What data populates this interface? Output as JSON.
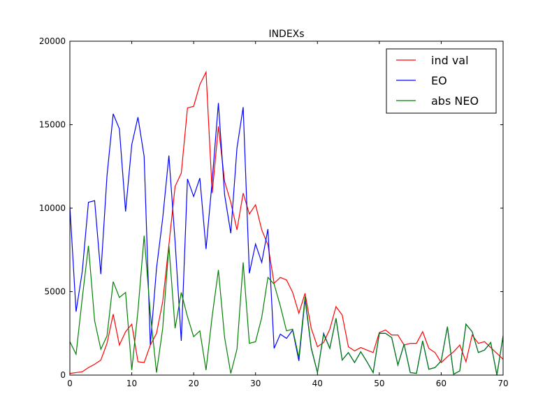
{
  "chart_data": {
    "type": "line",
    "title": "INDEXs",
    "xlabel": "",
    "ylabel": "",
    "xlim": [
      0,
      70
    ],
    "ylim": [
      0,
      20000
    ],
    "x_ticks": [
      0,
      10,
      20,
      30,
      40,
      50,
      60,
      70
    ],
    "y_ticks": [
      0,
      5000,
      10000,
      15000,
      20000
    ],
    "grid": false,
    "legend_position": "top-right",
    "x": [
      0,
      1,
      2,
      3,
      4,
      5,
      6,
      7,
      8,
      9,
      10,
      11,
      12,
      13,
      14,
      15,
      16,
      17,
      18,
      19,
      20,
      21,
      22,
      23,
      24,
      25,
      26,
      27,
      28,
      29,
      30,
      31,
      32,
      33,
      34,
      35,
      36,
      37,
      38,
      39,
      40,
      41,
      42,
      43,
      44,
      45,
      46,
      47,
      48,
      49,
      50,
      51,
      52,
      53,
      54,
      55,
      56,
      57,
      58,
      59,
      60,
      61,
      62,
      63,
      64,
      65,
      66,
      67,
      68,
      69,
      70
    ],
    "series": [
      {
        "name": "ind val",
        "color": "#ff0000",
        "values": [
          100,
          150,
          200,
          450,
          650,
          900,
          1900,
          3650,
          1800,
          2600,
          3050,
          800,
          750,
          1800,
          2500,
          4400,
          7800,
          11300,
          12100,
          16000,
          16100,
          17400,
          18150,
          10900,
          14900,
          11600,
          10350,
          8700,
          10900,
          9650,
          10200,
          8700,
          7800,
          5500,
          5850,
          5700,
          4950,
          3700,
          4900,
          2800,
          1700,
          1950,
          2750,
          4100,
          3600,
          1700,
          1450,
          1650,
          1500,
          1350,
          2550,
          2700,
          2400,
          2400,
          1800,
          1900,
          1900,
          2600,
          1600,
          1350,
          750,
          1100,
          1400,
          1800,
          800,
          2400,
          1900,
          2000,
          1650,
          1300,
          950
        ]
      },
      {
        "name": "EO",
        "color": "#0000ff",
        "values": [
          10100,
          3800,
          6200,
          10350,
          10450,
          6050,
          11950,
          15650,
          14750,
          9800,
          13800,
          15450,
          13100,
          1800,
          6400,
          9400,
          13150,
          8000,
          2050,
          11750,
          10700,
          11800,
          7550,
          11650,
          16300,
          10800,
          8500,
          13600,
          16050,
          6100,
          7850,
          6750,
          8750,
          1600,
          2450,
          2200,
          2700,
          850,
          4550,
          1600,
          150,
          2500,
          1600,
          3400,
          900,
          1350,
          750,
          1400,
          800,
          150,
          2500,
          2500,
          2250,
          600,
          1850,
          150,
          100,
          2050,
          350,
          450,
          850,
          2900,
          50,
          250,
          3050,
          2600,
          1350,
          1500,
          1950,
          0,
          2350
        ]
      },
      {
        "name": "abs NEO",
        "color": "#008000",
        "values": [
          2000,
          1250,
          4600,
          7750,
          3250,
          1550,
          2350,
          5600,
          4650,
          4950,
          300,
          3850,
          8350,
          3700,
          150,
          2800,
          7750,
          2800,
          4950,
          3500,
          2300,
          2650,
          300,
          3550,
          6300,
          2250,
          100,
          1550,
          6750,
          1900,
          2000,
          3450,
          5850,
          5450,
          4150,
          2650,
          2750,
          1050,
          4700,
          1650,
          150,
          2450,
          1600,
          3400,
          900,
          1350,
          750,
          1400,
          800,
          150,
          2500,
          2500,
          2250,
          600,
          1850,
          150,
          100,
          2050,
          350,
          450,
          850,
          2900,
          50,
          250,
          3050,
          2600,
          1350,
          1500,
          1950,
          0,
          2350
        ]
      }
    ]
  }
}
